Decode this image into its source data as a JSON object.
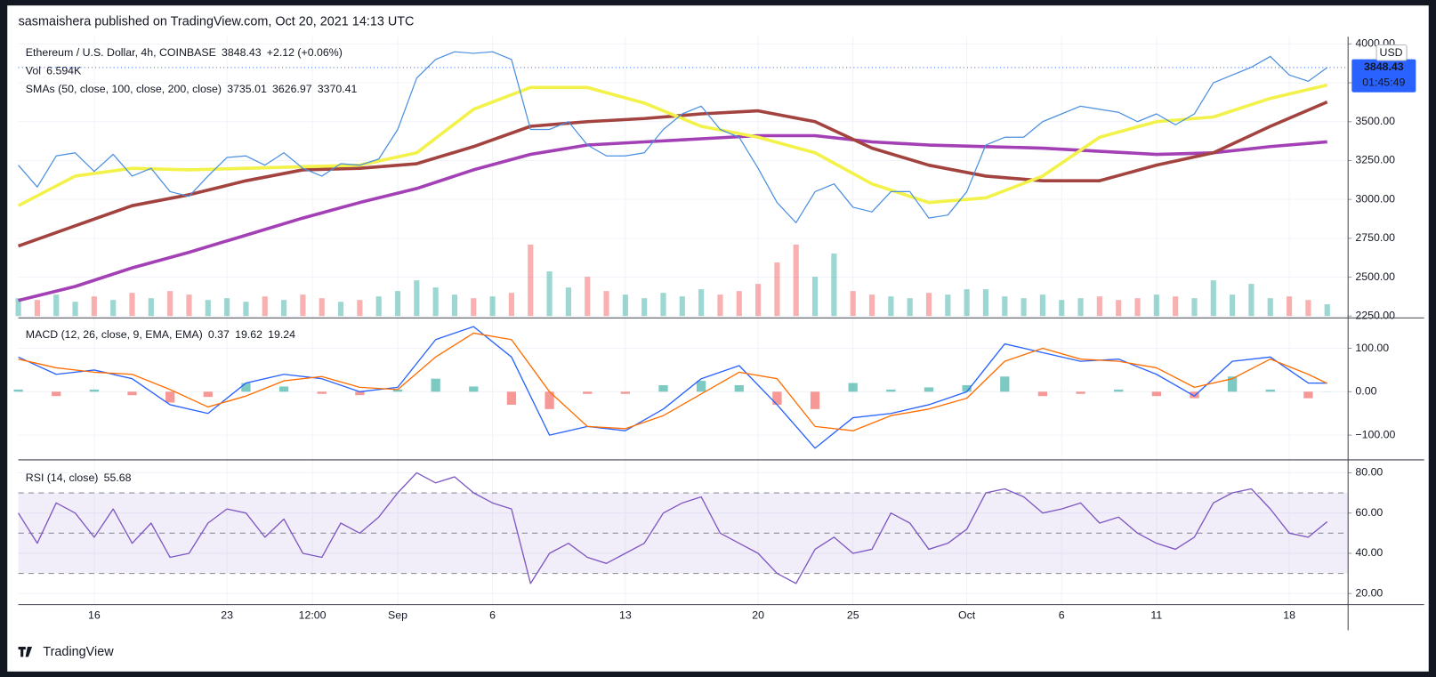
{
  "header": "sasmaishera published on TradingView.com, Oct 20, 2021 14:13 UTC",
  "footer": "TradingView",
  "chart_data": [
    {
      "type": "line",
      "title": "Ethereum / U.S. Dollar, 4h, COINBASE",
      "change": "+2.12 (+0.06%)",
      "volume_title": "Vol",
      "sma_title": "SMAs (50, close, 100, close, 200, close)",
      "currency": "USD",
      "countdown": "01:45:49",
      "xlim": [
        0,
        70.1
      ],
      "xticks": [
        {
          "value": 4,
          "label": "16"
        },
        {
          "value": 11,
          "label": "23"
        },
        {
          "value": 15.5,
          "label": "12:00"
        },
        {
          "value": 20,
          "label": "Sep"
        },
        {
          "value": 25,
          "label": "6"
        },
        {
          "value": 32,
          "label": "13"
        },
        {
          "value": 39,
          "label": "20"
        },
        {
          "value": 44,
          "label": "25"
        },
        {
          "value": 50,
          "label": "Oct"
        },
        {
          "value": 55,
          "label": "6"
        },
        {
          "value": 60,
          "label": "11"
        },
        {
          "value": 67,
          "label": "18"
        }
      ],
      "ylim": [
        2238,
        4047
      ],
      "yticks": [
        {
          "value": 2250,
          "label": "2250.00"
        },
        {
          "value": 2500,
          "label": "2500.00"
        },
        {
          "value": 2750,
          "label": "2750.00"
        },
        {
          "value": 3000,
          "label": "3000.00"
        },
        {
          "value": 3250,
          "label": "3250.00"
        },
        {
          "value": 3500,
          "label": "3500.00"
        },
        {
          "value": 3750,
          "label": "3750.00"
        },
        {
          "value": 4000,
          "label": "4000.00"
        }
      ],
      "grid": true,
      "series": [
        {
          "name": "ETHUSD",
          "color": "#4a8fe0",
          "x": [
            0,
            1,
            2,
            3,
            4,
            5,
            6,
            7,
            8,
            9,
            10,
            11,
            12,
            13,
            14,
            15,
            16,
            17,
            18,
            19,
            20,
            21,
            22,
            23,
            24,
            25,
            26,
            27,
            28,
            29,
            30,
            31,
            32,
            33,
            34,
            35,
            36,
            37,
            38,
            39,
            40,
            41,
            42,
            43,
            44,
            45,
            46,
            47,
            48,
            49,
            50,
            51,
            52,
            53,
            54,
            55,
            56,
            57,
            58,
            59,
            60,
            61,
            62,
            63,
            64,
            65,
            66,
            67,
            68,
            69
          ],
          "values": [
            3220,
            3080,
            3280,
            3300,
            3180,
            3290,
            3150,
            3200,
            3050,
            3020,
            3150,
            3270,
            3280,
            3220,
            3300,
            3200,
            3150,
            3230,
            3220,
            3260,
            3450,
            3780,
            3900,
            3950,
            3940,
            3950,
            3900,
            3450,
            3450,
            3500,
            3350,
            3280,
            3280,
            3300,
            3450,
            3550,
            3600,
            3450,
            3400,
            3200,
            2980,
            2850,
            3050,
            3100,
            2950,
            2920,
            3050,
            3050,
            2880,
            2900,
            3050,
            3350,
            3400,
            3400,
            3500,
            3550,
            3600,
            3580,
            3560,
            3500,
            3550,
            3480,
            3550,
            3750,
            3800,
            3850,
            3920,
            3800,
            3760,
            3848.43
          ]
        },
        {
          "name": "SMA 50",
          "color": "#f2f24a",
          "x": [
            0,
            3,
            6,
            9,
            12,
            15,
            18,
            21,
            24,
            27,
            30,
            33,
            36,
            39,
            42,
            45,
            48,
            51,
            54,
            57,
            60,
            63,
            66,
            69
          ],
          "values": [
            2960,
            3150,
            3200,
            3190,
            3200,
            3210,
            3220,
            3300,
            3580,
            3720,
            3720,
            3620,
            3470,
            3400,
            3300,
            3100,
            2980,
            3010,
            3150,
            3400,
            3500,
            3530,
            3650,
            3735.01
          ]
        },
        {
          "name": "SMA 100",
          "color": "#a3433f",
          "x": [
            0,
            3,
            6,
            9,
            12,
            15,
            18,
            21,
            24,
            27,
            30,
            33,
            36,
            39,
            42,
            45,
            48,
            51,
            54,
            57,
            60,
            63,
            66,
            69
          ],
          "values": [
            2700,
            2830,
            2960,
            3030,
            3120,
            3190,
            3200,
            3230,
            3340,
            3470,
            3500,
            3520,
            3550,
            3570,
            3500,
            3330,
            3220,
            3150,
            3120,
            3120,
            3220,
            3300,
            3470,
            3626.97
          ]
        },
        {
          "name": "SMA 200",
          "color": "#a340b5",
          "x": [
            0,
            3,
            6,
            9,
            12,
            15,
            18,
            21,
            24,
            27,
            30,
            33,
            36,
            39,
            42,
            45,
            48,
            51,
            54,
            57,
            60,
            63,
            66,
            69
          ],
          "values": [
            2350,
            2440,
            2560,
            2660,
            2770,
            2880,
            2980,
            3070,
            3190,
            3290,
            3350,
            3370,
            3390,
            3410,
            3410,
            3370,
            3350,
            3340,
            3330,
            3310,
            3290,
            3300,
            3340,
            3370.41
          ]
        }
      ],
      "volume": {
        "color_up": "rgba(38,166,154,0.45)",
        "color_down": "rgba(239,83,80,0.45)",
        "last_label": "6.594K",
        "x": [
          0,
          1,
          2,
          3,
          4,
          5,
          6,
          7,
          8,
          9,
          10,
          11,
          12,
          13,
          14,
          15,
          16,
          17,
          18,
          19,
          20,
          21,
          22,
          23,
          24,
          25,
          26,
          27,
          28,
          29,
          30,
          31,
          32,
          33,
          34,
          35,
          36,
          37,
          38,
          39,
          40,
          41,
          42,
          43,
          44,
          45,
          46,
          47,
          48,
          49,
          50,
          51,
          52,
          53,
          54,
          55,
          56,
          57,
          58,
          59,
          60,
          61,
          62,
          63,
          64,
          65,
          66,
          67,
          68,
          69
        ],
        "values": [
          10,
          9,
          12,
          8,
          11,
          9,
          13,
          10,
          14,
          12,
          9,
          10,
          8,
          11,
          9,
          12,
          10,
          8,
          9,
          11,
          14,
          20,
          16,
          12,
          10,
          11,
          13,
          40,
          25,
          16,
          22,
          14,
          12,
          10,
          13,
          11,
          15,
          12,
          14,
          18,
          30,
          40,
          22,
          35,
          14,
          12,
          11,
          10,
          13,
          12,
          15,
          15,
          11,
          10,
          12,
          9,
          10,
          11,
          9,
          10,
          12,
          11,
          10,
          20,
          12,
          18,
          10,
          11,
          9,
          6.594
        ]
      }
    },
    {
      "type": "macd",
      "title": "MACD (12, 26, close, 9, EMA, EMA)",
      "ylim": [
        -157,
        170
      ],
      "yticks": [
        {
          "value": -100,
          "label": "−100.00"
        },
        {
          "value": 0,
          "label": "0.00"
        },
        {
          "value": 100,
          "label": "100.00"
        }
      ],
      "series": [
        {
          "name": "Histogram",
          "color": "#26a69a",
          "color_down": "#ef5350",
          "x": [
            0,
            2,
            4,
            6,
            8,
            10,
            12,
            14,
            16,
            18,
            20,
            22,
            24,
            26,
            28,
            30,
            32,
            34,
            36,
            38,
            40,
            42,
            44,
            46,
            48,
            50,
            52,
            54,
            56,
            58,
            60,
            62,
            64,
            66,
            68,
            69
          ],
          "values": [
            5,
            -10,
            5,
            -8,
            -25,
            -12,
            20,
            12,
            -5,
            -8,
            5,
            30,
            12,
            -30,
            -40,
            -5,
            -5,
            15,
            25,
            15,
            -30,
            -40,
            20,
            5,
            10,
            15,
            35,
            -10,
            -5,
            5,
            -10,
            -15,
            35,
            5,
            -15,
            0.37
          ]
        },
        {
          "name": "MACD",
          "color": "#2962ff",
          "x": [
            0,
            2,
            4,
            6,
            8,
            10,
            12,
            14,
            16,
            18,
            20,
            22,
            24,
            26,
            28,
            30,
            32,
            34,
            36,
            38,
            40,
            42,
            44,
            46,
            48,
            50,
            52,
            54,
            56,
            58,
            60,
            62,
            64,
            66,
            68,
            69
          ],
          "values": [
            80,
            40,
            50,
            30,
            -30,
            -50,
            20,
            40,
            30,
            0,
            10,
            120,
            150,
            80,
            -100,
            -80,
            -90,
            -40,
            30,
            60,
            -30,
            -130,
            -60,
            -50,
            -30,
            0,
            110,
            90,
            70,
            75,
            40,
            -10,
            70,
            80,
            20,
            19.62
          ]
        },
        {
          "name": "Signal",
          "color": "#ff6d00",
          "x": [
            0,
            2,
            4,
            6,
            8,
            10,
            12,
            14,
            16,
            18,
            20,
            22,
            24,
            26,
            28,
            30,
            32,
            34,
            36,
            38,
            40,
            42,
            44,
            46,
            48,
            50,
            52,
            54,
            56,
            58,
            60,
            62,
            64,
            66,
            68,
            69
          ],
          "values": [
            75,
            55,
            45,
            40,
            5,
            -35,
            -10,
            25,
            35,
            10,
            5,
            80,
            135,
            120,
            0,
            -80,
            -85,
            -55,
            -5,
            45,
            30,
            -80,
            -90,
            -55,
            -40,
            -15,
            70,
            100,
            75,
            70,
            55,
            10,
            30,
            75,
            40,
            19.24
          ]
        }
      ]
    },
    {
      "type": "rsi",
      "title": "RSI (14, close)",
      "ylim": [
        14.5,
        86.4
      ],
      "yticks": [
        {
          "value": 20,
          "label": "20.00"
        },
        {
          "value": 40,
          "label": "40.00"
        },
        {
          "value": 60,
          "label": "60.00"
        },
        {
          "value": 80,
          "label": "80.00"
        }
      ],
      "band": [
        30,
        70
      ],
      "midline": 50,
      "band_color": "rgba(126,87,194,0.1)",
      "series": [
        {
          "name": "RSI",
          "color": "#7e57c2",
          "x": [
            0,
            1,
            2,
            3,
            4,
            5,
            6,
            7,
            8,
            9,
            10,
            11,
            12,
            13,
            14,
            15,
            16,
            17,
            18,
            19,
            20,
            21,
            22,
            23,
            24,
            25,
            26,
            27,
            28,
            29,
            30,
            31,
            32,
            33,
            34,
            35,
            36,
            37,
            38,
            39,
            40,
            41,
            42,
            43,
            44,
            45,
            46,
            47,
            48,
            49,
            50,
            51,
            52,
            53,
            54,
            55,
            56,
            57,
            58,
            59,
            60,
            61,
            62,
            63,
            64,
            65,
            66,
            67,
            68,
            69
          ],
          "values": [
            60,
            45,
            65,
            60,
            48,
            62,
            45,
            55,
            38,
            40,
            55,
            62,
            60,
            48,
            57,
            40,
            38,
            55,
            50,
            58,
            70,
            80,
            75,
            78,
            70,
            65,
            62,
            25,
            40,
            45,
            38,
            35,
            40,
            45,
            60,
            65,
            68,
            50,
            45,
            40,
            30,
            25,
            42,
            48,
            40,
            42,
            60,
            55,
            42,
            45,
            52,
            70,
            72,
            68,
            60,
            62,
            65,
            55,
            58,
            50,
            45,
            42,
            48,
            65,
            70,
            72,
            62,
            50,
            48,
            55.68
          ]
        }
      ]
    }
  ]
}
